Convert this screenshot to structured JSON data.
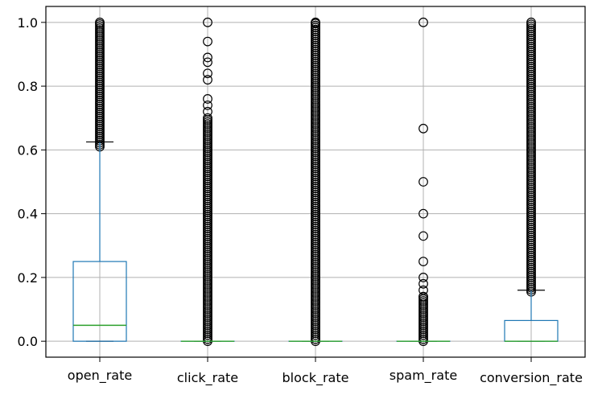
{
  "chart_data": {
    "type": "box",
    "title": "",
    "xlabel": "",
    "ylabel": "",
    "categories": [
      "open_rate",
      "click_rate",
      "block_rate",
      "spam_rate",
      "conversion_rate"
    ],
    "ylim": [
      -0.05,
      1.05
    ],
    "yticks": [
      0.0,
      0.2,
      0.4,
      0.6,
      0.8,
      1.0
    ],
    "ytick_labels": [
      "0.0",
      "0.2",
      "0.4",
      "0.6",
      "0.8",
      "1.0"
    ],
    "grid": true,
    "boxes": [
      {
        "name": "open_rate",
        "whisker_low": 0.0,
        "q1": 0.0,
        "median": 0.05,
        "q3": 0.25,
        "whisker_high": 0.625,
        "outliers": {
          "dense_from": 0.61,
          "dense_to": 1.0,
          "points": []
        }
      },
      {
        "name": "click_rate",
        "whisker_low": 0.0,
        "q1": 0.0,
        "median": 0.0,
        "q3": 0.0,
        "whisker_high": 0.0,
        "outliers": {
          "dense_from": 0.0,
          "dense_to": 0.7,
          "points": [
            0.72,
            0.74,
            0.76,
            0.82,
            0.84,
            0.875,
            0.89,
            0.94,
            1.0
          ]
        }
      },
      {
        "name": "block_rate",
        "whisker_low": 0.0,
        "q1": 0.0,
        "median": 0.0,
        "q3": 0.0,
        "whisker_high": 0.0,
        "outliers": {
          "dense_from": 0.0,
          "dense_to": 1.0,
          "points": []
        }
      },
      {
        "name": "spam_rate",
        "whisker_low": 0.0,
        "q1": 0.0,
        "median": 0.0,
        "q3": 0.0,
        "whisker_high": 0.0,
        "outliers": {
          "dense_from": 0.0,
          "dense_to": 0.14,
          "points": [
            0.16,
            0.18,
            0.2,
            0.25,
            0.33,
            0.4,
            0.5,
            0.667,
            1.0
          ]
        }
      },
      {
        "name": "conversion_rate",
        "whisker_low": 0.0,
        "q1": 0.0,
        "median": 0.0,
        "q3": 0.065,
        "whisker_high": 0.16,
        "outliers": {
          "dense_from": 0.155,
          "dense_to": 1.0,
          "points": []
        }
      }
    ],
    "colors": {
      "box": "#1f77b4",
      "median": "#2ca02c",
      "whisker": "#1f77b4",
      "cap": "#000000",
      "outlier": "#000000",
      "grid": "#b0b0b0",
      "axes": "#000000"
    }
  }
}
